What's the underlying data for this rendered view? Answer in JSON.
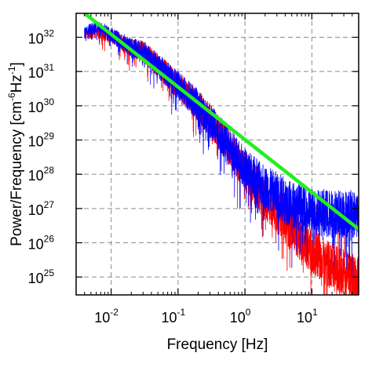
{
  "chart_data": {
    "type": "line",
    "title": "",
    "xlabel": "Frequency [Hz]",
    "ylabel": "Power/Frequency [cm^-6 Hz^-1]",
    "ylabel_parts": {
      "base": "Power/Frequency [cm",
      "exp1": "-6",
      "mid": "Hz",
      "exp2": "-1",
      "end": "]"
    },
    "x_scale": "log",
    "y_scale": "log",
    "xlim": [
      0.003,
      50
    ],
    "ylim": [
      3e+24,
      5e+32
    ],
    "grid": true,
    "legend": "none",
    "x_ticks": [
      {
        "base": "10",
        "exp": "-2",
        "value": 0.01
      },
      {
        "base": "10",
        "exp": "-1",
        "value": 0.1
      },
      {
        "base": "10",
        "exp": "0",
        "value": 1
      },
      {
        "base": "10",
        "exp": "1",
        "value": 10
      }
    ],
    "y_ticks": [
      {
        "base": "10",
        "exp": "25",
        "value": 1e+25
      },
      {
        "base": "10",
        "exp": "26",
        "value": 1e+26
      },
      {
        "base": "10",
        "exp": "27",
        "value": 1e+27
      },
      {
        "base": "10",
        "exp": "28",
        "value": 1e+28
      },
      {
        "base": "10",
        "exp": "29",
        "value": 1e+29
      },
      {
        "base": "10",
        "exp": "30",
        "value": 1e+30
      },
      {
        "base": "10",
        "exp": "31",
        "value": 1e+31
      },
      {
        "base": "10",
        "exp": "32",
        "value": 1e+32
      }
    ],
    "series": [
      {
        "color": "#ff0000",
        "kind": "noisy-spectrum",
        "x": [
          0.004,
          0.006,
          0.01,
          0.02,
          0.03,
          0.05,
          0.1,
          0.2,
          0.5,
          1,
          2,
          5,
          10,
          20,
          50
        ],
        "y": [
          1.2e+32,
          1.5e+32,
          1.1e+32,
          5e+31,
          4e+31,
          1.5e+31,
          4e+30,
          1e+30,
          1e+29,
          1.2e+28,
          2e+27,
          3e+26,
          6e+25,
          2e+25,
          8e+24
        ]
      },
      {
        "color": "#0000ff",
        "kind": "noisy-spectrum",
        "x": [
          0.004,
          0.006,
          0.01,
          0.02,
          0.03,
          0.05,
          0.1,
          0.2,
          0.5,
          1,
          2,
          5,
          10,
          20,
          50
        ],
        "y": [
          1.5e+32,
          2e+32,
          1.2e+32,
          5e+31,
          4e+31,
          1.5e+31,
          4e+30,
          1e+30,
          1e+29,
          1.5e+28,
          4e+27,
          1.3e+27,
          8e+26,
          7e+26,
          7e+26
        ]
      },
      {
        "color": "#22ee22",
        "kind": "power-law-fit",
        "x": [
          0.004,
          50
        ],
        "y": [
          5e+32,
          2.5e+26
        ]
      }
    ]
  },
  "colors": {
    "red_series": "#ff0000",
    "blue_series": "#0000ff",
    "fit": "#22ee22",
    "grid": "#8c8c8c"
  }
}
